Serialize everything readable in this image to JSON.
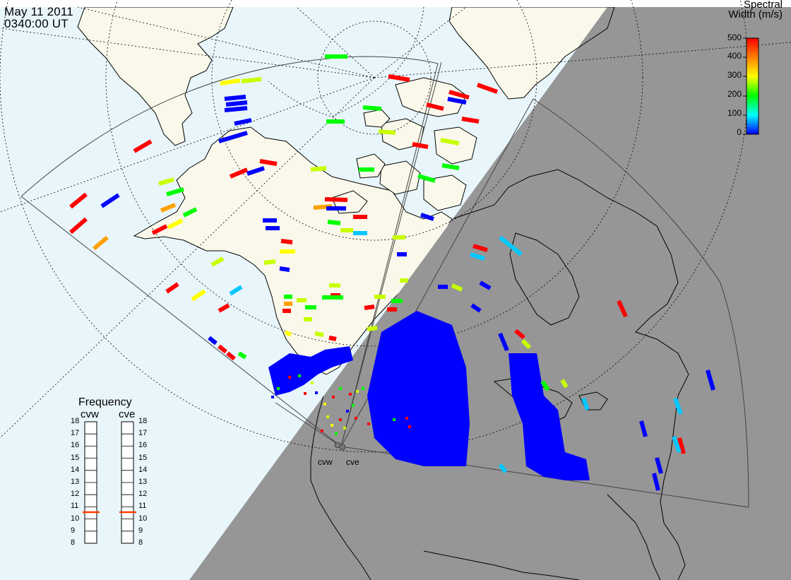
{
  "header": {
    "date": "May 11 2011",
    "time": "0340:00 UT"
  },
  "colorbar": {
    "title_line1": "Spectral",
    "title_line2": "Width (m/s)",
    "ticks": [
      "500",
      "400",
      "300",
      "200",
      "100",
      "0"
    ],
    "stops": [
      "#0000ff",
      "#00ffff",
      "#00ff00",
      "#ffff00",
      "#ff8000",
      "#ff0000"
    ]
  },
  "frequency_panel": {
    "title": "Frequency",
    "radars": [
      {
        "name": "cvw",
        "selected_mhz": 10.8
      },
      {
        "name": "cve",
        "selected_mhz": 10.8
      }
    ],
    "scale": [
      "18",
      "17",
      "16",
      "15",
      "14",
      "13",
      "12",
      "11",
      "10",
      "9",
      "8"
    ]
  },
  "sites": [
    {
      "label": "cvw"
    },
    {
      "label": "cve"
    }
  ],
  "colors": {
    "ocean": "#e8f6fc",
    "land": "#f9f8ea",
    "night": "#969696",
    "coast": "#000000",
    "indicator": "#ff4000"
  }
}
